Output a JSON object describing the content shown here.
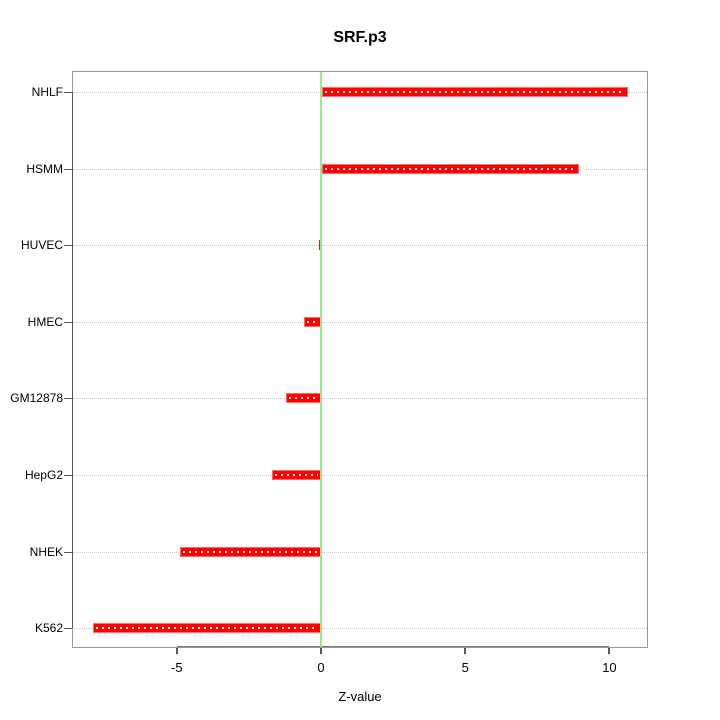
{
  "chart_data": {
    "type": "bar",
    "orientation": "horizontal",
    "title": "SRF.p3",
    "xlabel": "Z-value",
    "ylabel": "",
    "categories": [
      "NHLF",
      "HSMM",
      "HUVEC",
      "HMEC",
      "GM12878",
      "HepG2",
      "NHEK",
      "K562"
    ],
    "values": [
      10.6,
      8.9,
      0,
      -0.6,
      -1.2,
      -1.7,
      -4.9,
      -7.9
    ],
    "xlim": [
      -8.6,
      11.3
    ],
    "xtick_values": [
      -5,
      0,
      5,
      10
    ],
    "xtick_labels": [
      "-5",
      "0",
      "5",
      "10"
    ],
    "grid": "dotted horizontal row lines",
    "legend": "none",
    "zero_reference_line": 0,
    "colors": {
      "bar": "#FF0000",
      "bar_edge": "#FF6A6A",
      "bar_dash": "#FFFFFF",
      "zero_stub": "#B03020",
      "zero_line": "#90EE90",
      "grid_line": "#C9C9C9",
      "box": "#999999",
      "axis": "#555555",
      "text": "#000000",
      "background": "#FFFFFF"
    }
  }
}
